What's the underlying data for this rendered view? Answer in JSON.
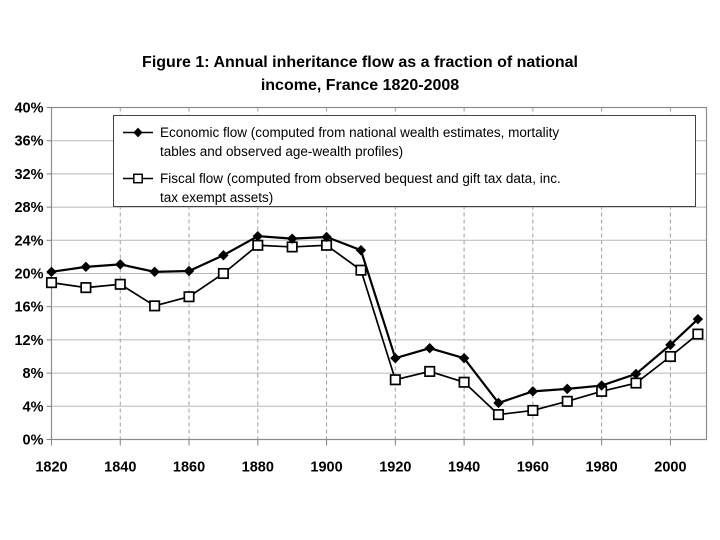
{
  "title": {
    "lines": [
      "Figure 1: Annual inheritance flow as a fraction of national",
      "income, France 1820-2008"
    ]
  },
  "legend": {
    "items": [
      {
        "marker": "filled-diamond",
        "label": "Economic flow (computed from national wealth estimates, mortality tables and observed age-wealth profiles)",
        "lines": [
          "Economic flow (computed from national wealth estimates, mortality",
          "tables and observed age-wealth profiles)"
        ]
      },
      {
        "marker": "open-square",
        "label": "Fiscal flow (computed from observed bequest and gift tax data, inc. tax exempt assets)",
        "lines": [
          "Fiscal flow (computed from observed bequest and gift tax data, inc.",
          "tax exempt assets)"
        ]
      }
    ]
  },
  "chart_data": {
    "type": "line",
    "title": "Figure 1: Annual inheritance flow as a fraction of national income, France 1820-2008",
    "x": [
      1820,
      1830,
      1840,
      1850,
      1860,
      1870,
      1880,
      1890,
      1900,
      1910,
      1920,
      1930,
      1940,
      1950,
      1960,
      1970,
      1980,
      1990,
      2000,
      2008
    ],
    "series": [
      {
        "name": "Economic flow (computed from national wealth estimates, mortality tables and observed age-wealth profiles)",
        "marker": "filled-diamond",
        "color": "#000000",
        "values": [
          20.2,
          20.8,
          21.1,
          20.2,
          20.3,
          22.2,
          24.5,
          24.2,
          24.4,
          22.8,
          9.8,
          11.0,
          9.8,
          4.4,
          5.8,
          6.1,
          6.5,
          7.9,
          11.4,
          14.5
        ]
      },
      {
        "name": "Fiscal flow (computed from observed bequest and gift tax data, inc. tax exempt assets)",
        "marker": "open-square",
        "color": "#000000",
        "values": [
          18.9,
          18.3,
          18.7,
          16.1,
          17.2,
          20.0,
          23.4,
          23.2,
          23.4,
          20.4,
          7.2,
          8.2,
          6.9,
          3.0,
          3.5,
          4.6,
          5.8,
          6.8,
          10.0,
          12.7
        ]
      }
    ],
    "xlabel": "",
    "ylabel": "",
    "xlim": [
      1820,
      2010.5
    ],
    "ylim": [
      0,
      40
    ],
    "x_ticks": [
      1820,
      1840,
      1860,
      1880,
      1900,
      1920,
      1940,
      1960,
      1980,
      2000
    ],
    "x_tick_labels": [
      "1820",
      "1840",
      "1860",
      "1880",
      "1900",
      "1920",
      "1940",
      "1960",
      "1980",
      "2000"
    ],
    "y_ticks": [
      0,
      4,
      8,
      12,
      16,
      20,
      24,
      28,
      32,
      36,
      40
    ],
    "y_tick_labels": [
      "0%",
      "4%",
      "8%",
      "12%",
      "16%",
      "20%",
      "24%",
      "28%",
      "32%",
      "36%",
      "40%"
    ],
    "grid": {
      "horizontal": "solid",
      "vertical": "dashed"
    },
    "legend_position": "inside-top",
    "colors": {
      "series": "#000000",
      "grid_horizontal": "#b8b8b8",
      "grid_vertical": "#a0a0a0",
      "plot_border": "#8c8c8c",
      "tick": "#7f7f7f",
      "text": "#000000",
      "background": "#ffffff"
    }
  }
}
